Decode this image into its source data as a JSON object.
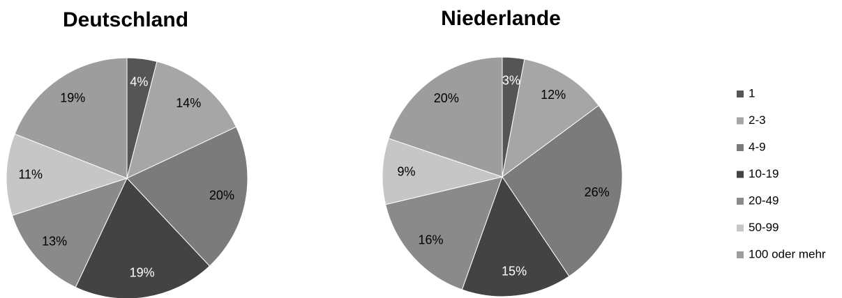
{
  "chart_data": [
    {
      "type": "pie",
      "title": "Deutschland",
      "categories": [
        "1",
        "2-3",
        "4-9",
        "10-19",
        "20-49",
        "50-99",
        "100 oder mehr"
      ],
      "values": [
        4,
        14,
        20,
        19,
        13,
        11,
        19
      ],
      "value_labels": [
        "4%",
        "14%",
        "20%",
        "19%",
        "13%",
        "11%",
        "19%"
      ],
      "colors": [
        "#555555",
        "#a6a6a6",
        "#7b7b7b",
        "#434343",
        "#8a8a8a",
        "#c6c6c6",
        "#9d9d9d"
      ]
    },
    {
      "type": "pie",
      "title": "Niederlande",
      "categories": [
        "1",
        "2-3",
        "4-9",
        "10-19",
        "20-49",
        "50-99",
        "100 oder mehr"
      ],
      "values": [
        3,
        12,
        26,
        15,
        16,
        9,
        20
      ],
      "value_labels": [
        "3%",
        "12%",
        "26%",
        "15%",
        "16%",
        "9%",
        "20%"
      ],
      "colors": [
        "#555555",
        "#a6a6a6",
        "#7b7b7b",
        "#434343",
        "#8a8a8a",
        "#c6c6c6",
        "#9d9d9d"
      ]
    }
  ]
}
